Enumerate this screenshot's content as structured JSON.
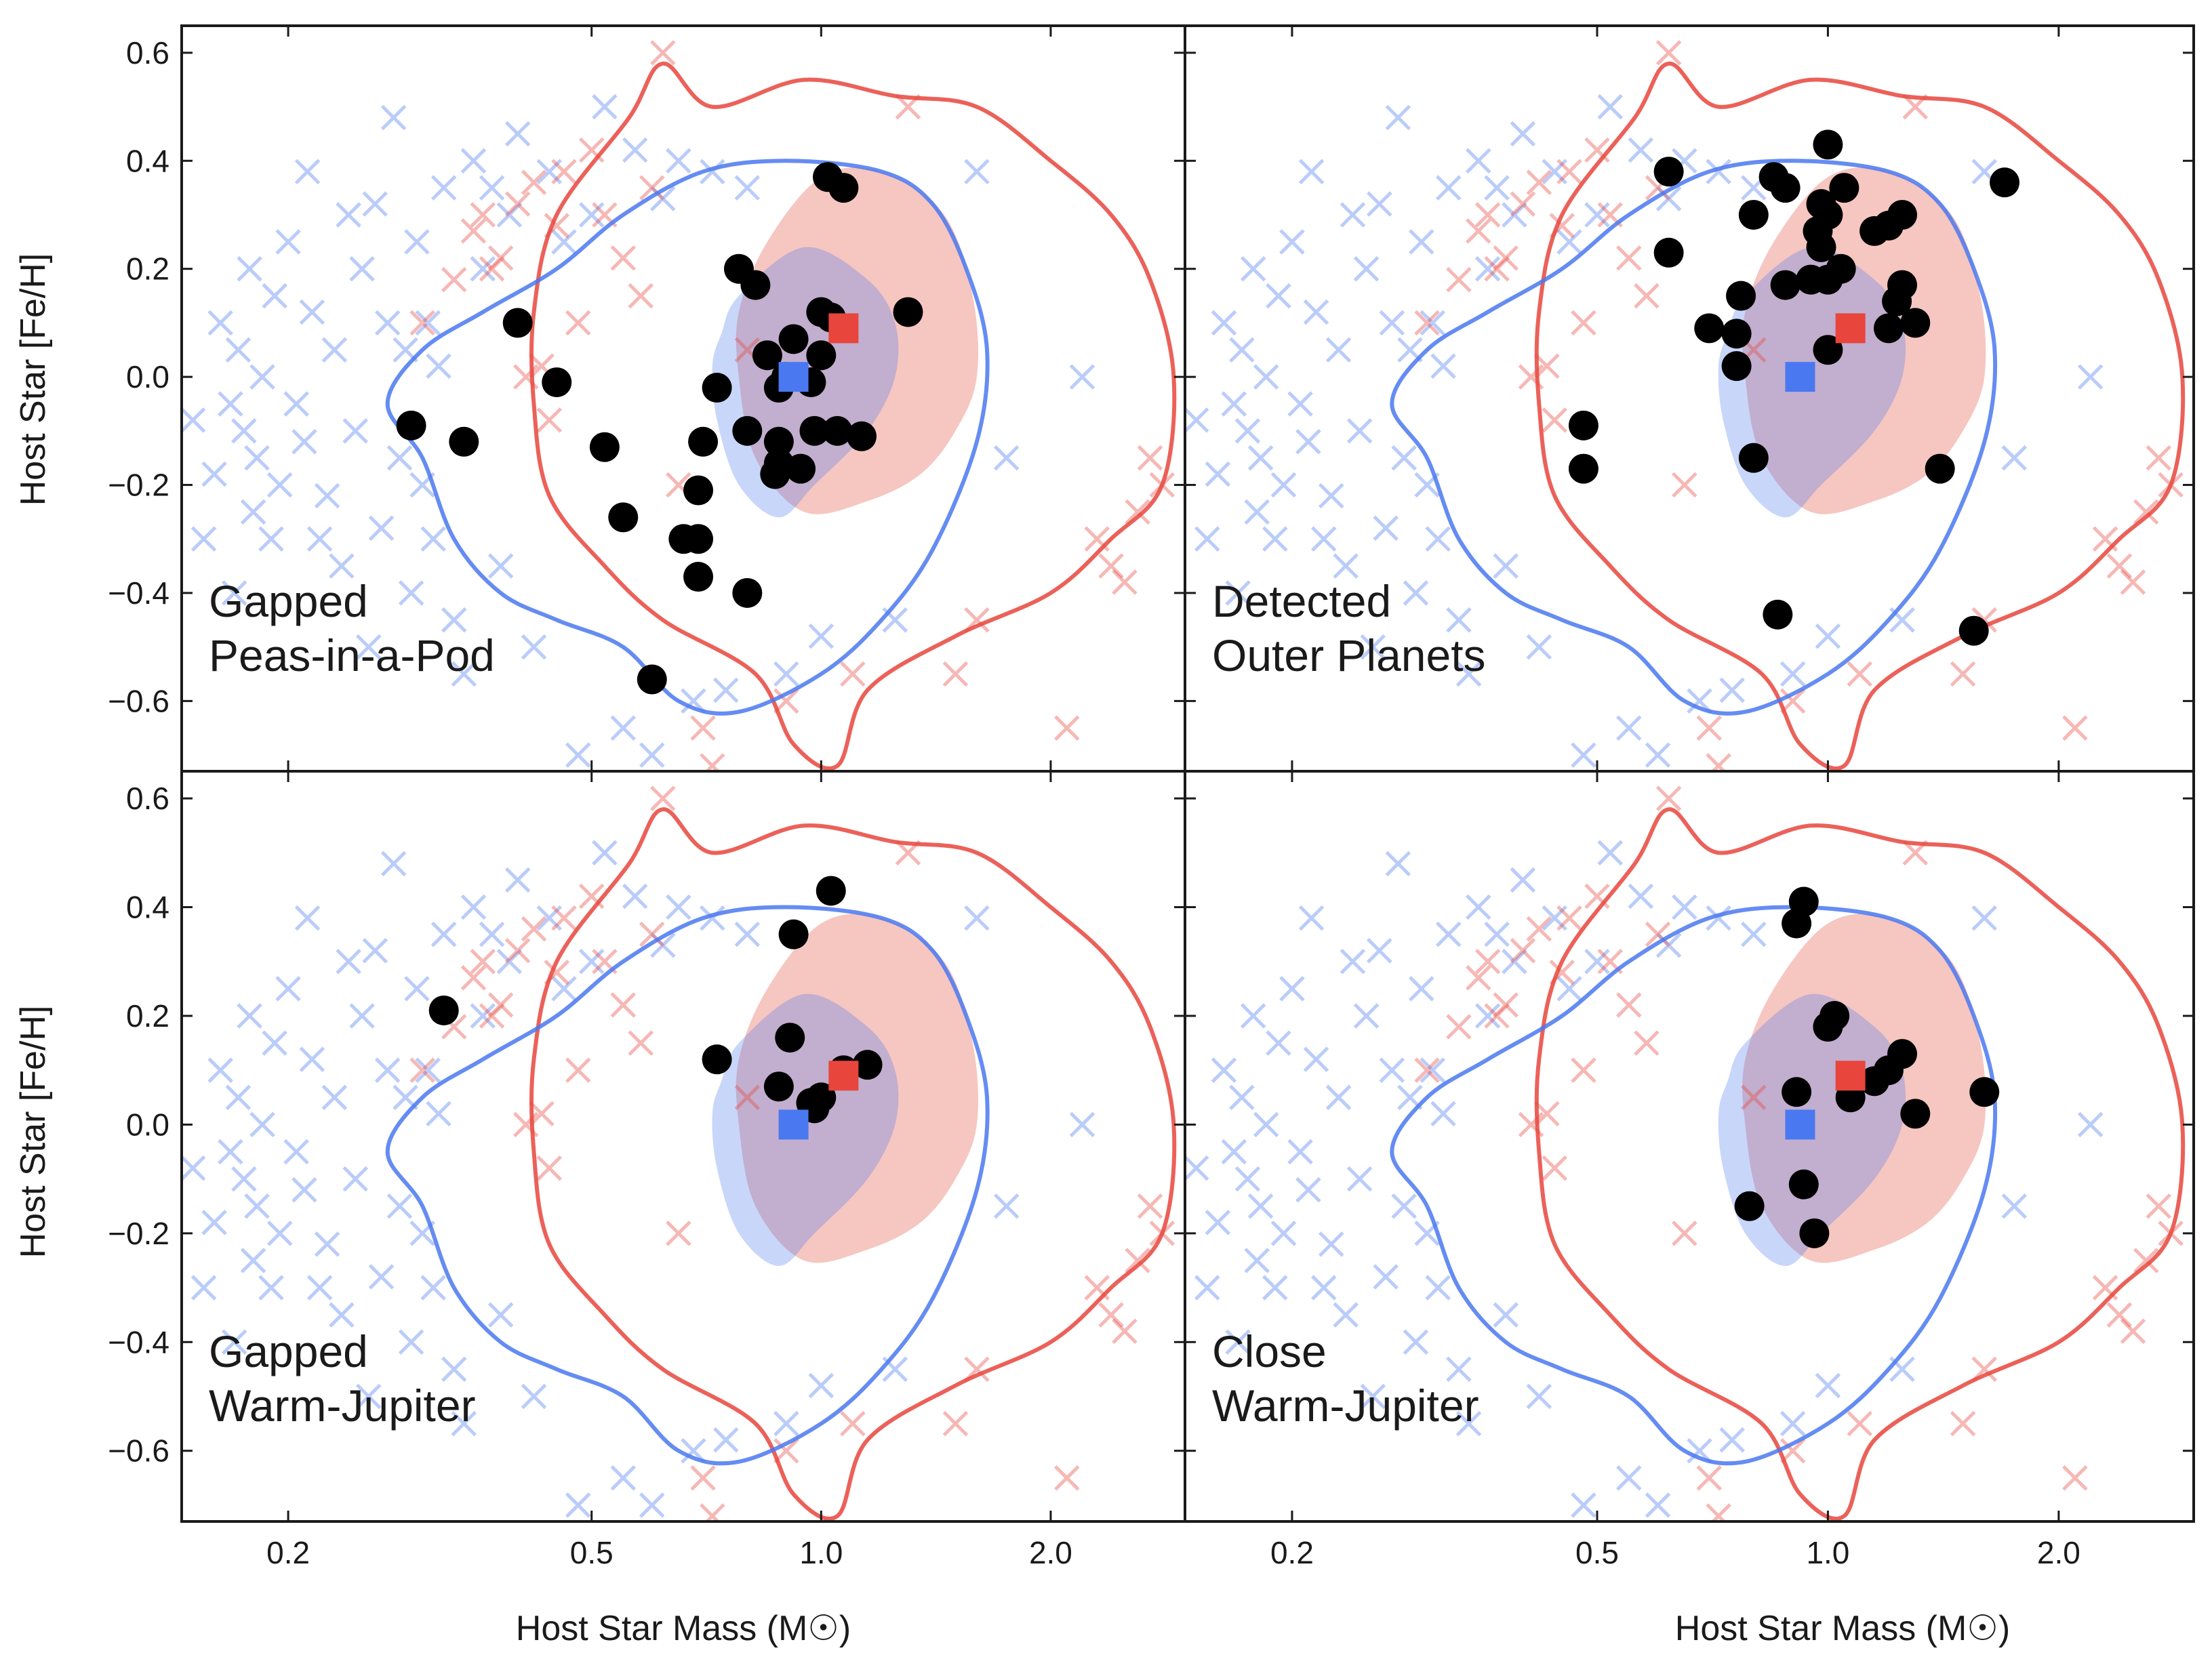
{
  "chart_data": {
    "type": "scatter",
    "layout": "2x2 grid, shared axes",
    "xlabel": "Host Star Mass (M☉)",
    "ylabel": "Host Star [Fe/H]",
    "xscale": "log",
    "xlim": [
      0.145,
      3.0
    ],
    "ylim": [
      -0.73,
      0.65
    ],
    "xticks": [
      {
        "value": 0.2,
        "label": "0.2"
      },
      {
        "value": 0.5,
        "label": "0.5"
      },
      {
        "value": 1.0,
        "label": "1.0"
      },
      {
        "value": 2.0,
        "label": "2.0"
      }
    ],
    "yticks": [
      {
        "value": 0.6,
        "label": "0.6"
      },
      {
        "value": 0.4,
        "label": "0.4"
      },
      {
        "value": 0.2,
        "label": "0.2"
      },
      {
        "value": 0.0,
        "label": "0.0"
      },
      {
        "value": -0.2,
        "label": "−0.2"
      },
      {
        "value": -0.4,
        "label": "−0.4"
      },
      {
        "value": -0.6,
        "label": "−0.6"
      }
    ],
    "colors": {
      "blue": "#4a78f0",
      "red": "#e8453c",
      "blue_fill": "#c7d0f7",
      "red_fill": "#f5c3be",
      "overlap_fill": "#b89ac9",
      "highlight": "#000000"
    },
    "background": {
      "blue_crosses": [
        [
          0.15,
          -0.08
        ],
        [
          0.155,
          -0.3
        ],
        [
          0.16,
          -0.18
        ],
        [
          0.163,
          0.1
        ],
        [
          0.168,
          -0.05
        ],
        [
          0.17,
          -0.4
        ],
        [
          0.172,
          0.05
        ],
        [
          0.175,
          -0.1
        ],
        [
          0.178,
          0.2
        ],
        [
          0.18,
          -0.25
        ],
        [
          0.182,
          -0.15
        ],
        [
          0.185,
          0.0
        ],
        [
          0.19,
          -0.3
        ],
        [
          0.192,
          0.15
        ],
        [
          0.195,
          -0.2
        ],
        [
          0.2,
          0.25
        ],
        [
          0.205,
          -0.05
        ],
        [
          0.21,
          -0.12
        ],
        [
          0.212,
          0.38
        ],
        [
          0.215,
          0.12
        ],
        [
          0.22,
          -0.3
        ],
        [
          0.225,
          -0.22
        ],
        [
          0.23,
          0.05
        ],
        [
          0.235,
          -0.35
        ],
        [
          0.24,
          0.3
        ],
        [
          0.245,
          -0.1
        ],
        [
          0.25,
          0.2
        ],
        [
          0.255,
          -0.5
        ],
        [
          0.26,
          0.32
        ],
        [
          0.265,
          -0.28
        ],
        [
          0.27,
          0.1
        ],
        [
          0.275,
          0.48
        ],
        [
          0.28,
          -0.15
        ],
        [
          0.285,
          0.05
        ],
        [
          0.29,
          -0.4
        ],
        [
          0.295,
          0.25
        ],
        [
          0.3,
          -0.2
        ],
        [
          0.305,
          0.1
        ],
        [
          0.31,
          -0.3
        ],
        [
          0.315,
          0.02
        ],
        [
          0.32,
          0.35
        ],
        [
          0.33,
          -0.45
        ],
        [
          0.34,
          -0.55
        ],
        [
          0.35,
          0.4
        ],
        [
          0.36,
          0.2
        ],
        [
          0.37,
          0.35
        ],
        [
          0.38,
          -0.35
        ],
        [
          0.39,
          0.3
        ],
        [
          0.4,
          0.45
        ],
        [
          0.42,
          -0.5
        ],
        [
          0.44,
          0.38
        ],
        [
          0.46,
          0.25
        ],
        [
          0.48,
          -0.7
        ],
        [
          0.5,
          0.3
        ],
        [
          0.52,
          0.5
        ],
        [
          0.55,
          -0.65
        ],
        [
          0.57,
          0.42
        ],
        [
          0.6,
          -0.7
        ],
        [
          0.62,
          0.33
        ],
        [
          0.65,
          0.4
        ],
        [
          0.68,
          -0.6
        ],
        [
          0.72,
          0.38
        ],
        [
          0.75,
          -0.58
        ],
        [
          0.8,
          0.35
        ],
        [
          0.9,
          -0.55
        ],
        [
          1.0,
          -0.48
        ],
        [
          1.25,
          -0.45
        ],
        [
          1.6,
          0.38
        ],
        [
          1.75,
          -0.15
        ],
        [
          2.2,
          0.0
        ]
      ],
      "red_crosses": [
        [
          0.3,
          0.1
        ],
        [
          0.33,
          0.18
        ],
        [
          0.35,
          0.27
        ],
        [
          0.36,
          0.3
        ],
        [
          0.37,
          0.2
        ],
        [
          0.38,
          0.22
        ],
        [
          0.4,
          0.32
        ],
        [
          0.41,
          0.0
        ],
        [
          0.42,
          0.36
        ],
        [
          0.43,
          0.02
        ],
        [
          0.44,
          -0.08
        ],
        [
          0.45,
          0.28
        ],
        [
          0.46,
          0.38
        ],
        [
          0.48,
          0.1
        ],
        [
          0.5,
          0.42
        ],
        [
          0.52,
          0.3
        ],
        [
          0.55,
          0.22
        ],
        [
          0.58,
          0.15
        ],
        [
          0.6,
          0.35
        ],
        [
          0.62,
          0.6
        ],
        [
          0.65,
          -0.2
        ],
        [
          0.7,
          -0.65
        ],
        [
          0.72,
          -0.72
        ],
        [
          0.8,
          0.05
        ],
        [
          0.9,
          -0.6
        ],
        [
          1.1,
          -0.55
        ],
        [
          1.3,
          0.5
        ],
        [
          1.5,
          -0.55
        ],
        [
          1.6,
          -0.45
        ],
        [
          2.1,
          -0.65
        ],
        [
          2.3,
          -0.3
        ],
        [
          2.4,
          -0.35
        ],
        [
          2.5,
          -0.38
        ],
        [
          2.6,
          -0.25
        ],
        [
          2.7,
          -0.15
        ],
        [
          2.8,
          -0.2
        ]
      ]
    },
    "medians": [
      {
        "name": "blue-median",
        "x": 0.92,
        "y": 0.0
      },
      {
        "name": "red-median",
        "x": 1.07,
        "y": 0.09
      }
    ],
    "panels": [
      {
        "label_line1": "Gapped",
        "label_line2": "Peas-in-a-Pod",
        "points": [
          [
            1.02,
            0.37
          ],
          [
            1.07,
            0.35
          ],
          [
            0.78,
            0.2
          ],
          [
            0.82,
            0.17
          ],
          [
            1.3,
            0.12
          ],
          [
            1.0,
            0.12
          ],
          [
            1.03,
            0.11
          ],
          [
            0.92,
            0.07
          ],
          [
            0.85,
            0.04
          ],
          [
            1.0,
            0.04
          ],
          [
            0.9,
            0.0
          ],
          [
            0.4,
            0.1
          ],
          [
            0.45,
            -0.01
          ],
          [
            0.73,
            -0.02
          ],
          [
            0.88,
            -0.02
          ],
          [
            0.97,
            -0.01
          ],
          [
            0.8,
            -0.1
          ],
          [
            0.98,
            -0.1
          ],
          [
            1.05,
            -0.1
          ],
          [
            1.13,
            -0.11
          ],
          [
            0.7,
            -0.12
          ],
          [
            0.88,
            -0.12
          ],
          [
            0.29,
            -0.09
          ],
          [
            0.34,
            -0.12
          ],
          [
            0.52,
            -0.13
          ],
          [
            0.88,
            -0.16
          ],
          [
            0.94,
            -0.17
          ],
          [
            0.87,
            -0.18
          ],
          [
            0.69,
            -0.21
          ],
          [
            0.55,
            -0.26
          ],
          [
            0.66,
            -0.3
          ],
          [
            0.69,
            -0.3
          ],
          [
            0.69,
            -0.37
          ],
          [
            0.8,
            -0.4
          ],
          [
            0.6,
            -0.56
          ]
        ]
      },
      {
        "label_line1": "Detected",
        "label_line2": "Outer Planets",
        "points": [
          [
            1.0,
            0.43
          ],
          [
            0.62,
            0.38
          ],
          [
            0.85,
            0.37
          ],
          [
            0.88,
            0.35
          ],
          [
            1.05,
            0.35
          ],
          [
            1.7,
            0.36
          ],
          [
            0.8,
            0.3
          ],
          [
            0.98,
            0.32
          ],
          [
            1.0,
            0.3
          ],
          [
            1.25,
            0.3
          ],
          [
            1.2,
            0.28
          ],
          [
            0.97,
            0.27
          ],
          [
            1.15,
            0.27
          ],
          [
            0.98,
            0.24
          ],
          [
            0.62,
            0.23
          ],
          [
            1.04,
            0.2
          ],
          [
            0.95,
            0.18
          ],
          [
            1.0,
            0.18
          ],
          [
            0.88,
            0.17
          ],
          [
            1.25,
            0.17
          ],
          [
            0.77,
            0.15
          ],
          [
            1.23,
            0.14
          ],
          [
            0.7,
            0.09
          ],
          [
            0.76,
            0.08
          ],
          [
            1.2,
            0.09
          ],
          [
            1.3,
            0.1
          ],
          [
            1.0,
            0.05
          ],
          [
            0.76,
            0.02
          ],
          [
            0.48,
            -0.09
          ],
          [
            0.48,
            -0.17
          ],
          [
            0.8,
            -0.15
          ],
          [
            1.4,
            -0.17
          ],
          [
            0.86,
            -0.44
          ],
          [
            1.55,
            -0.47
          ]
        ]
      },
      {
        "label_line1": "Gapped",
        "label_line2": "Warm-Jupiter",
        "points": [
          [
            1.03,
            0.43
          ],
          [
            0.92,
            0.35
          ],
          [
            0.32,
            0.21
          ],
          [
            0.91,
            0.16
          ],
          [
            0.73,
            0.12
          ],
          [
            0.88,
            0.07
          ],
          [
            1.07,
            0.1
          ],
          [
            1.15,
            0.11
          ],
          [
            0.97,
            0.04
          ],
          [
            1.0,
            0.05
          ],
          [
            0.98,
            0.03
          ]
        ]
      },
      {
        "label_line1": "Close",
        "label_line2": "Warm-Jupiter",
        "points": [
          [
            0.93,
            0.41
          ],
          [
            0.91,
            0.37
          ],
          [
            1.02,
            0.2
          ],
          [
            1.0,
            0.18
          ],
          [
            1.25,
            0.13
          ],
          [
            1.2,
            0.1
          ],
          [
            1.15,
            0.08
          ],
          [
            0.91,
            0.06
          ],
          [
            1.07,
            0.05
          ],
          [
            1.3,
            0.02
          ],
          [
            1.6,
            0.06
          ],
          [
            0.79,
            -0.15
          ],
          [
            0.93,
            -0.11
          ],
          [
            0.96,
            -0.2
          ]
        ]
      }
    ]
  }
}
